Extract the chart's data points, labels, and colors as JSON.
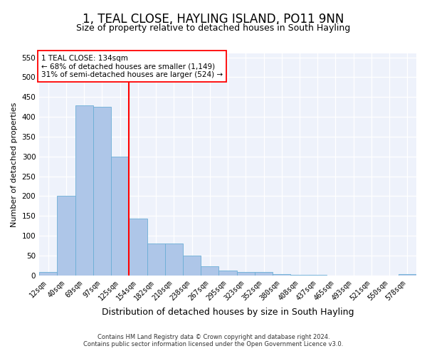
{
  "title": "1, TEAL CLOSE, HAYLING ISLAND, PO11 9NN",
  "subtitle": "Size of property relative to detached houses in South Hayling",
  "xlabel": "Distribution of detached houses by size in South Hayling",
  "ylabel": "Number of detached properties",
  "categories": [
    "12sqm",
    "40sqm",
    "69sqm",
    "97sqm",
    "125sqm",
    "154sqm",
    "182sqm",
    "210sqm",
    "238sqm",
    "267sqm",
    "295sqm",
    "323sqm",
    "352sqm",
    "380sqm",
    "408sqm",
    "437sqm",
    "465sqm",
    "493sqm",
    "521sqm",
    "550sqm",
    "578sqm"
  ],
  "values": [
    8,
    200,
    428,
    425,
    300,
    143,
    80,
    80,
    50,
    23,
    12,
    8,
    8,
    3,
    2,
    1,
    0,
    0,
    0,
    0,
    3
  ],
  "bar_color": "#aec6e8",
  "bar_edge_color": "#6baed6",
  "vline_x": 4.5,
  "vline_color": "red",
  "annotation_text": "1 TEAL CLOSE: 134sqm\n← 68% of detached houses are smaller (1,149)\n31% of semi-detached houses are larger (524) →",
  "annotation_box_color": "white",
  "annotation_box_edge": "red",
  "ylim": [
    0,
    560
  ],
  "yticks": [
    0,
    50,
    100,
    150,
    200,
    250,
    300,
    350,
    400,
    450,
    500,
    550
  ],
  "footnote1": "Contains HM Land Registry data © Crown copyright and database right 2024.",
  "footnote2": "Contains public sector information licensed under the Open Government Licence v3.0.",
  "background_color": "#eef2fb",
  "title_fontsize": 12,
  "subtitle_fontsize": 9,
  "xlabel_fontsize": 9,
  "ylabel_fontsize": 8,
  "tick_fontsize": 7,
  "annot_fontsize": 7.5,
  "footnote_fontsize": 6
}
